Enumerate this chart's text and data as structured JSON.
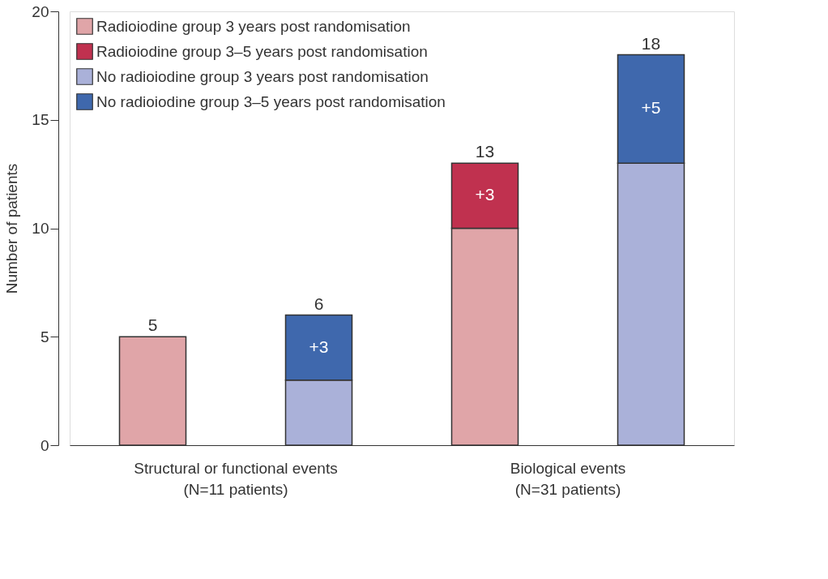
{
  "chart_data": {
    "type": "bar",
    "stacked": true,
    "ylabel": "Number of patients",
    "categories": [
      null,
      null,
      null,
      null
    ],
    "series": [
      {
        "name": "Radioiodine group 3 years post randomisation",
        "color": "#e0a5a8",
        "values": [
          5,
          null,
          10,
          null
        ]
      },
      {
        "name": "Radioiodine group 3–5 years post randomisation",
        "color": "#c0314f",
        "values": [
          null,
          null,
          3,
          null
        ],
        "value_labels": [
          null,
          null,
          "+3",
          null
        ]
      },
      {
        "name": "No radioiodine group 3 years post randomisation",
        "color": "#aab1d9",
        "values": [
          null,
          3,
          null,
          13
        ]
      },
      {
        "name": "No radioiodine group 3–5 years post randomisation",
        "color": "#3f68ad",
        "values": [
          null,
          3,
          null,
          5
        ],
        "value_labels": [
          null,
          "+3",
          null,
          "+5"
        ]
      }
    ],
    "totals": [
      "5",
      "6",
      "13",
      "18"
    ],
    "annotations": [
      "Structural or functional events\n(N=11 patients)",
      "Biological events\n(N=31 patients)"
    ],
    "ylim": [
      0,
      20
    ],
    "yticks": [
      0,
      5,
      10,
      15,
      20
    ],
    "grid": false,
    "legend": "top left"
  }
}
